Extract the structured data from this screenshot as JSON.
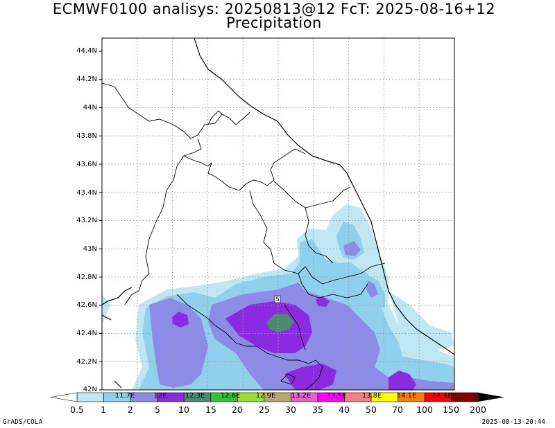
{
  "title": {
    "line1": "ECMWF0100 analisys: 20250813@12 FcT: 2025-08-16+12",
    "line2": "Precipitation"
  },
  "map": {
    "lat_labels": [
      "44.4N",
      "44.2N",
      "44N",
      "43.8N",
      "43.6N",
      "43.4N",
      "43.2N",
      "43N",
      "42.8N",
      "42.6N",
      "42.4N",
      "42.2N",
      "42N"
    ],
    "lon_labels": [
      "11.7E",
      "12E",
      "12.3E",
      "12.6E",
      "12.9E",
      "13.2E",
      "13.5E",
      "13.8E",
      "14.1E",
      "14.4E"
    ],
    "marker_label": "5",
    "lat_range": [
      42.0,
      44.5
    ],
    "lon_range": [
      11.55,
      14.55
    ],
    "grid": "dotted"
  },
  "colorbar": {
    "levels": [
      "0.5",
      "1",
      "2",
      "5",
      "10",
      "15",
      "20",
      "25",
      "30",
      "35",
      "40",
      "50",
      "70",
      "100",
      "150",
      "200"
    ],
    "colors": [
      "#ffffff",
      "#bfe7f2",
      "#8fd0ec",
      "#8c8ce6",
      "#8a2be2",
      "#4a8a70",
      "#33c233",
      "#99dd33",
      "#b5a672",
      "#e065c7",
      "#ff00ff",
      "#f28080",
      "#ffff00",
      "#ff7f00",
      "#ff0000",
      "#800000"
    ]
  },
  "footer": {
    "left": "GrADS/COLA",
    "right": "2025-08-13-20:44"
  }
}
